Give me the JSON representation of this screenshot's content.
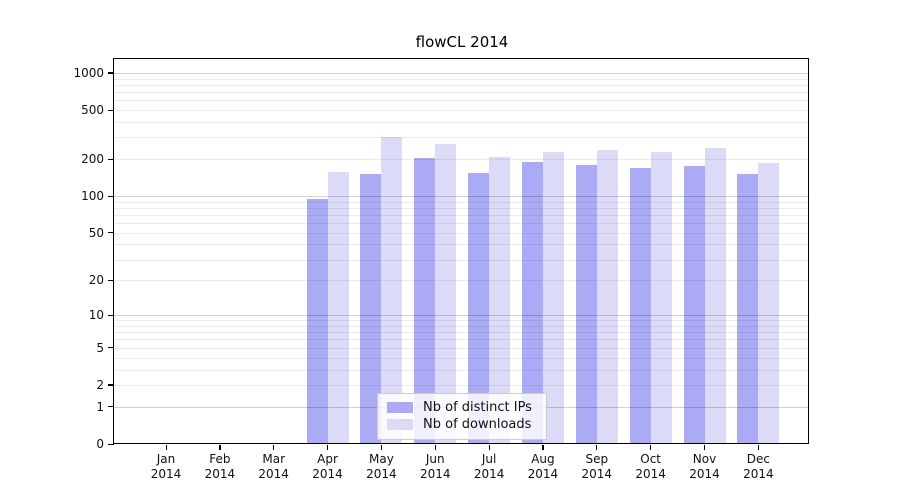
{
  "title": "flowCL 2014",
  "colors": {
    "distinct_ips": "#aaaaf5",
    "downloads": "#dbdbf8",
    "grid_minor": "#ececec",
    "grid_major": "#d2d2d2",
    "axis": "#000000",
    "background": "#ffffff"
  },
  "legend": {
    "items": [
      {
        "label": "Nb of distinct IPs"
      },
      {
        "label": "Nb of downloads"
      }
    ]
  },
  "chart_data": {
    "type": "bar",
    "title": "flowCL 2014",
    "categories": [
      {
        "month": "Jan",
        "year": "2014"
      },
      {
        "month": "Feb",
        "year": "2014"
      },
      {
        "month": "Mar",
        "year": "2014"
      },
      {
        "month": "Apr",
        "year": "2014"
      },
      {
        "month": "May",
        "year": "2014"
      },
      {
        "month": "Jun",
        "year": "2014"
      },
      {
        "month": "Jul",
        "year": "2014"
      },
      {
        "month": "Aug",
        "year": "2014"
      },
      {
        "month": "Sep",
        "year": "2014"
      },
      {
        "month": "Oct",
        "year": "2014"
      },
      {
        "month": "Nov",
        "year": "2014"
      },
      {
        "month": "Dec",
        "year": "2014"
      }
    ],
    "series": [
      {
        "name": "Nb of distinct IPs",
        "color": "#aaaaf5",
        "values": [
          0,
          0,
          0,
          95,
          152,
          205,
          154,
          190,
          180,
          170,
          177,
          151
        ]
      },
      {
        "name": "Nb of downloads",
        "color": "#dbdbf8",
        "values": [
          0,
          0,
          0,
          158,
          300,
          266,
          207,
          230,
          236,
          227,
          246,
          186
        ]
      }
    ],
    "xlabel": "",
    "ylabel": "",
    "yscale": "log1p",
    "ylim": [
      0,
      1300
    ],
    "yticks": [
      0,
      1,
      2,
      5,
      10,
      20,
      50,
      100,
      200,
      500,
      1000
    ],
    "gridlines": {
      "major": [
        1,
        10,
        100,
        1000
      ],
      "minor": [
        2,
        3,
        4,
        5,
        6,
        7,
        8,
        9,
        20,
        30,
        40,
        50,
        60,
        70,
        80,
        90,
        200,
        300,
        400,
        500,
        600,
        700,
        800,
        900
      ]
    },
    "grid": true,
    "legend_position": "inside-bottom-center"
  }
}
